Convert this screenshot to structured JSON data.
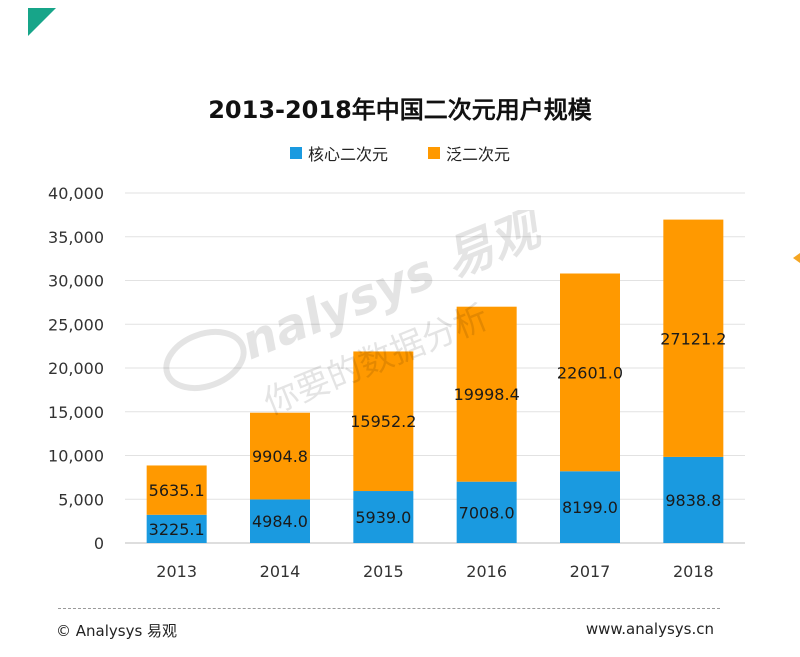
{
  "chart_data": {
    "type": "bar",
    "stacked": true,
    "title": "2013-2018年中国二次元用户规模",
    "categories": [
      "2013",
      "2014",
      "2015",
      "2016",
      "2017",
      "2018"
    ],
    "series": [
      {
        "name": "核心二次元",
        "color": "#1a9ae0",
        "values": [
          3225.1,
          4984.0,
          5939.0,
          7008.0,
          8199.0,
          9838.8
        ]
      },
      {
        "name": "泛二次元",
        "color": "#ff9900",
        "values": [
          5635.1,
          9904.8,
          15952.2,
          19998.4,
          22601.0,
          27121.2
        ]
      }
    ],
    "ylim": [
      0,
      40000
    ],
    "yticks": [
      "0",
      "5,000",
      "10,000",
      "15,000",
      "20,000",
      "25,000",
      "30,000",
      "35,000",
      "40,000"
    ],
    "grid": true,
    "legend_position": "top"
  },
  "footer": {
    "left": "© Analysys 易观",
    "right": "www.analysys.cn"
  },
  "watermark": {
    "brand": "nalysys 易观",
    "slogan": "你要的数据分析"
  },
  "colors": {
    "accent": "#17a589"
  }
}
